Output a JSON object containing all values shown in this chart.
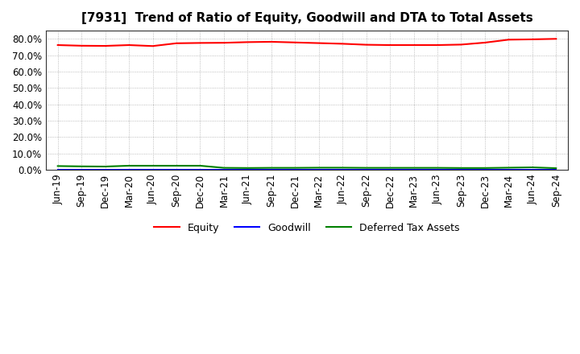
{
  "title": "[7931]  Trend of Ratio of Equity, Goodwill and DTA to Total Assets",
  "x_labels": [
    "Jun-19",
    "Sep-19",
    "Dec-19",
    "Mar-20",
    "Jun-20",
    "Sep-20",
    "Dec-20",
    "Mar-21",
    "Jun-21",
    "Sep-21",
    "Dec-21",
    "Mar-22",
    "Jun-22",
    "Sep-22",
    "Dec-22",
    "Mar-23",
    "Jun-23",
    "Sep-23",
    "Dec-23",
    "Mar-24",
    "Jun-24",
    "Sep-24"
  ],
  "equity": [
    0.762,
    0.758,
    0.757,
    0.762,
    0.756,
    0.773,
    0.775,
    0.776,
    0.78,
    0.782,
    0.778,
    0.774,
    0.77,
    0.764,
    0.762,
    0.762,
    0.762,
    0.765,
    0.777,
    0.795,
    0.797,
    0.8
  ],
  "goodwill": [
    0.0,
    0.0,
    0.0,
    0.0,
    0.0,
    0.0,
    0.0,
    0.0,
    0.0,
    0.0,
    0.0,
    0.0,
    0.0,
    0.0,
    0.0,
    0.0,
    0.0,
    0.0,
    0.0,
    0.0,
    0.0,
    0.0
  ],
  "dta": [
    0.023,
    0.021,
    0.02,
    0.025,
    0.025,
    0.025,
    0.025,
    0.012,
    0.011,
    0.012,
    0.012,
    0.013,
    0.013,
    0.012,
    0.012,
    0.012,
    0.012,
    0.011,
    0.011,
    0.013,
    0.015,
    0.01
  ],
  "equity_color": "#FF0000",
  "goodwill_color": "#0000FF",
  "dta_color": "#008000",
  "ylim": [
    0.0,
    0.85
  ],
  "yticks": [
    0.0,
    0.1,
    0.2,
    0.3,
    0.4,
    0.5,
    0.6,
    0.7,
    0.8
  ],
  "background_color": "#FFFFFF",
  "plot_bg_color": "#FFFFFF",
  "grid_color": "#AAAAAA",
  "legend_labels": [
    "Equity",
    "Goodwill",
    "Deferred Tax Assets"
  ],
  "title_fontsize": 11,
  "axis_fontsize": 9,
  "tick_fontsize": 8.5
}
